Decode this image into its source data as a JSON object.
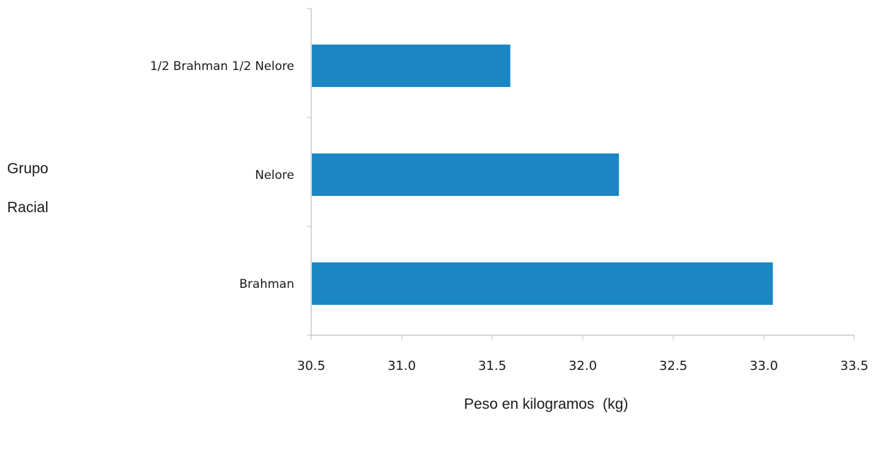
{
  "chart_data": {
    "type": "bar",
    "orientation": "horizontal",
    "title": "",
    "ylabel_lines": [
      "Grupo",
      "Racial"
    ],
    "xlabel": "Peso en kilogramos  (kg)",
    "categories": [
      "1/2 Brahman 1/2 Nelore",
      "Nelore",
      "Brahman"
    ],
    "values": [
      31.6,
      32.2,
      33.05
    ],
    "xlim": [
      30.5,
      33.5
    ],
    "xticks": [
      "30.5",
      "31.0",
      "31.5",
      "32.0",
      "32.5",
      "33.0",
      "33.5"
    ],
    "grid": false,
    "legend": "none",
    "colors": {
      "bar": "#1a86c4",
      "axis": "#bdbdbd",
      "text": "#1a1a1a"
    }
  }
}
